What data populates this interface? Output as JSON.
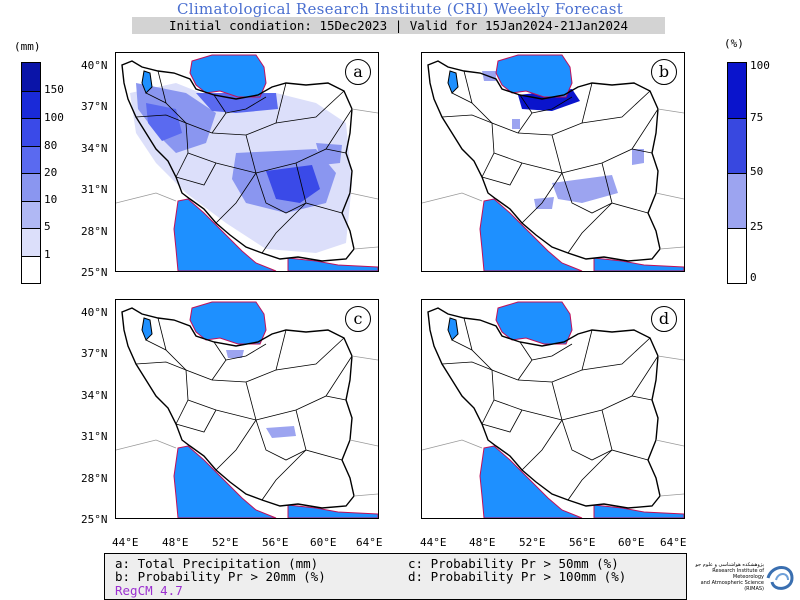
{
  "header": {
    "title": "Climatological Research Institute (CRI) Weekly Forecast",
    "subtitle": "Initial condiation: 15Dec2023 | Valid for 15Jan2024-21Jan2024"
  },
  "panels": [
    {
      "id": "a",
      "label": "a"
    },
    {
      "id": "b",
      "label": "b"
    },
    {
      "id": "c",
      "label": "c"
    },
    {
      "id": "d",
      "label": "d"
    }
  ],
  "axes": {
    "latitude_labels": [
      "40°N",
      "37°N",
      "34°N",
      "31°N",
      "28°N",
      "25°N"
    ],
    "longitude_labels": [
      "44°E",
      "48°E",
      "52°E",
      "56°E",
      "60°E",
      "64°E"
    ]
  },
  "colorbar_left": {
    "unit": "(mm)",
    "levels": [
      "150",
      "100",
      "80",
      "20",
      "10",
      "5",
      "1"
    ],
    "colors": [
      "#0a14a8",
      "#1a2ad8",
      "#3a4ae8",
      "#5a6af0",
      "#8a96f0",
      "#b0b8f4",
      "#dcdffa",
      "#ffffff"
    ]
  },
  "colorbar_right": {
    "unit": "(%)",
    "levels": [
      "100",
      "75",
      "50",
      "25",
      "0"
    ],
    "colors": [
      "#0a14cc",
      "#3848e0",
      "#9ca4f0",
      "#ffffff"
    ]
  },
  "legend": {
    "a": "a: Total Precipitation (mm)",
    "b": "b: Probability Pr > 20mm (%)",
    "c": "c: Probability Pr > 50mm (%)",
    "d": "d: Probability Pr > 100mm (%)",
    "model": "RegCM 4.7"
  },
  "logo": {
    "line1": "پژوهشکده هواشناسی و علوم جو",
    "line2": "Research Institute of Meteorology",
    "line3": "and Atmospheric Science (RIMAS)"
  },
  "map": {
    "sea_color": "#1e90ff",
    "border_color": "#000000",
    "coast_color": "#c0105a"
  }
}
